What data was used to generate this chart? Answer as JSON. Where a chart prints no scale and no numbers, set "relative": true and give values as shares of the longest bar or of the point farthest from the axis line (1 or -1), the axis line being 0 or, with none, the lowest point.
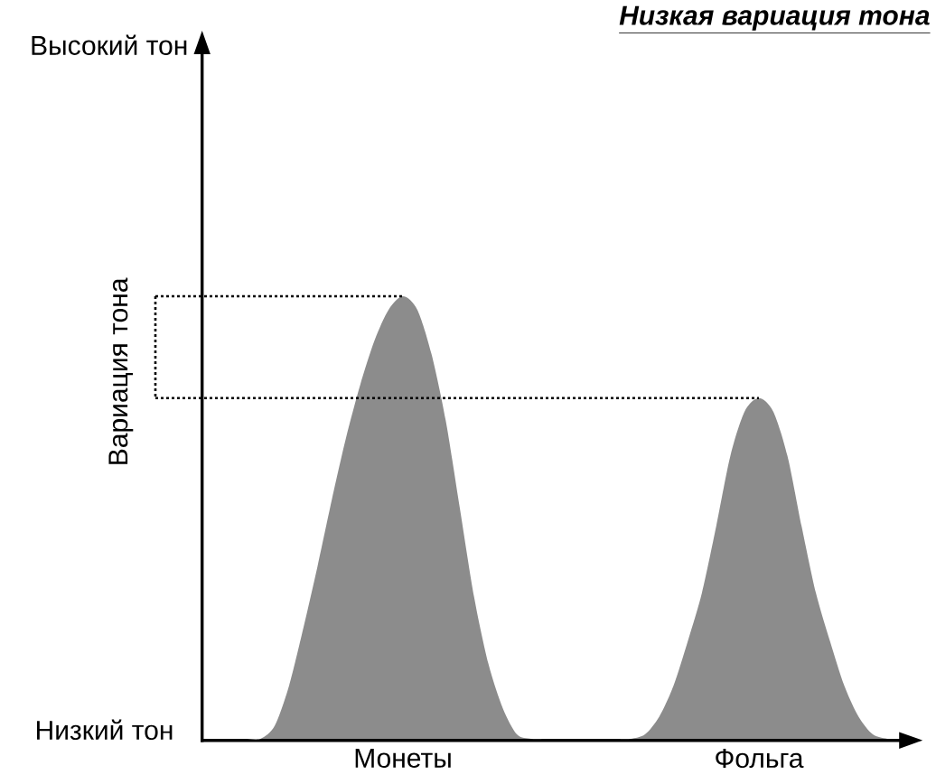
{
  "chart_data": {
    "type": "area",
    "title": "Низкая вариация тона",
    "ylabel": "Вариация тона",
    "annotations": [
      "Высокий тон",
      "Низкий тон"
    ],
    "categories": [
      null,
      null,
      null,
      null,
      null,
      null,
      null,
      null,
      null,
      null,
      null,
      null,
      null,
      null,
      "Монеты",
      null,
      null,
      null,
      null,
      null,
      null,
      null,
      null,
      null,
      null,
      null,
      null,
      null,
      null,
      null,
      null,
      null,
      null,
      null,
      null,
      null,
      null,
      null,
      null,
      "Фольга",
      null,
      null,
      null,
      null,
      null,
      null,
      null,
      null,
      null
    ],
    "values": [
      0,
      0,
      0,
      0,
      0,
      0.03,
      0.12,
      0.25,
      0.39,
      0.54,
      0.68,
      0.8,
      0.9,
      0.97,
      1,
      0.97,
      0.87,
      0.72,
      0.52,
      0.32,
      0.17,
      0.07,
      0.01,
      0,
      0,
      0,
      0,
      0,
      0,
      0,
      0,
      0.01,
      0.05,
      0.12,
      0.22,
      0.33,
      0.48,
      0.64,
      0.74,
      0.77,
      0.74,
      0.64,
      0.48,
      0.33,
      0.22,
      0.12,
      0.05,
      0.01,
      0
    ],
    "color": "#8c8c8c",
    "relative": true,
    "ref_lines": [
      {
        "axis": "y",
        "value": 1,
        "line_style": "dotted"
      },
      {
        "axis": "y",
        "value": 0.77,
        "line_style": "dotted"
      }
    ]
  }
}
